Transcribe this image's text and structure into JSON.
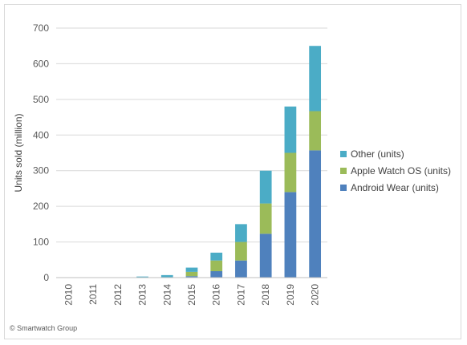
{
  "chart_data": {
    "type": "bar",
    "stacked": true,
    "categories": [
      "2010",
      "2011",
      "2012",
      "2013",
      "2014",
      "2015",
      "2016",
      "2017",
      "2018",
      "2019",
      "2020"
    ],
    "series": [
      {
        "name": "Android Wear (units)",
        "color": "#4f81bd",
        "values": [
          0,
          0,
          0,
          0,
          1,
          4,
          18,
          48,
          123,
          240,
          357
        ]
      },
      {
        "name": "Apple Watch OS (units)",
        "color": "#9bbb59",
        "values": [
          0,
          0,
          0,
          0,
          0,
          12,
          30,
          52,
          85,
          110,
          110
        ]
      },
      {
        "name": "Other (units)",
        "color": "#4bacc6",
        "values": [
          1,
          1,
          1,
          3,
          6,
          12,
          22,
          50,
          92,
          130,
          183
        ]
      }
    ],
    "ylabel": "Units sold (million)",
    "xlabel": "",
    "ylim": [
      0,
      700
    ],
    "yticks": [
      "0",
      "100",
      "200",
      "300",
      "400",
      "500",
      "600",
      "700"
    ],
    "grid": true,
    "legend_position": "right",
    "legend_order": [
      "Other (units)",
      "Apple Watch OS (units)",
      "Android Wear (units)"
    ]
  },
  "credit": "© Smartwatch Group"
}
